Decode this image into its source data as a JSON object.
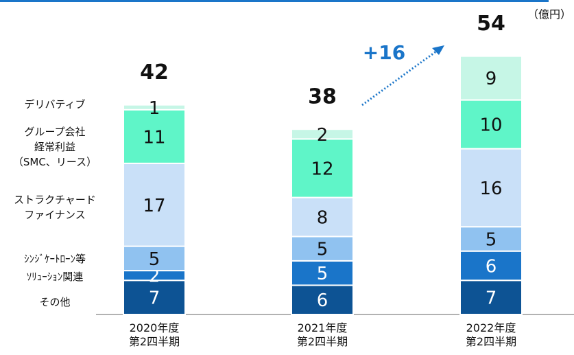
{
  "chart_data": {
    "type": "stacked_bar",
    "unit": "（億円）",
    "annotation": "+16",
    "categories": [
      "2020年度\n第2四半期",
      "2021年度\n第2四半期",
      "2022年度\n第2四半期"
    ],
    "totals": [
      42,
      38,
      54
    ],
    "ylim": [
      0,
      60
    ],
    "series": [
      {
        "name": "その他",
        "color": "#0d5394",
        "values": [
          7,
          6,
          7
        ]
      },
      {
        "name": "ｿﾘｭｰｼｮﾝ関連",
        "color": "#1a75c9",
        "values": [
          2,
          5,
          6
        ]
      },
      {
        "name": "ｼﾝｼﾞｹｰﾄﾛｰﾝ等",
        "color": "#90c2f0",
        "values": [
          5,
          5,
          5
        ]
      },
      {
        "name": "ストラクチャード\nファイナンス",
        "color": "#c9e0f8",
        "values": [
          17,
          8,
          16
        ]
      },
      {
        "name": "グループ会社\n経常利益\n（SMC、リース）",
        "color": "#5ff5c8",
        "values": [
          11,
          12,
          10
        ]
      },
      {
        "name": "デリバティブ",
        "color": "#c6f6e6",
        "values": [
          1,
          2,
          9
        ]
      }
    ]
  }
}
